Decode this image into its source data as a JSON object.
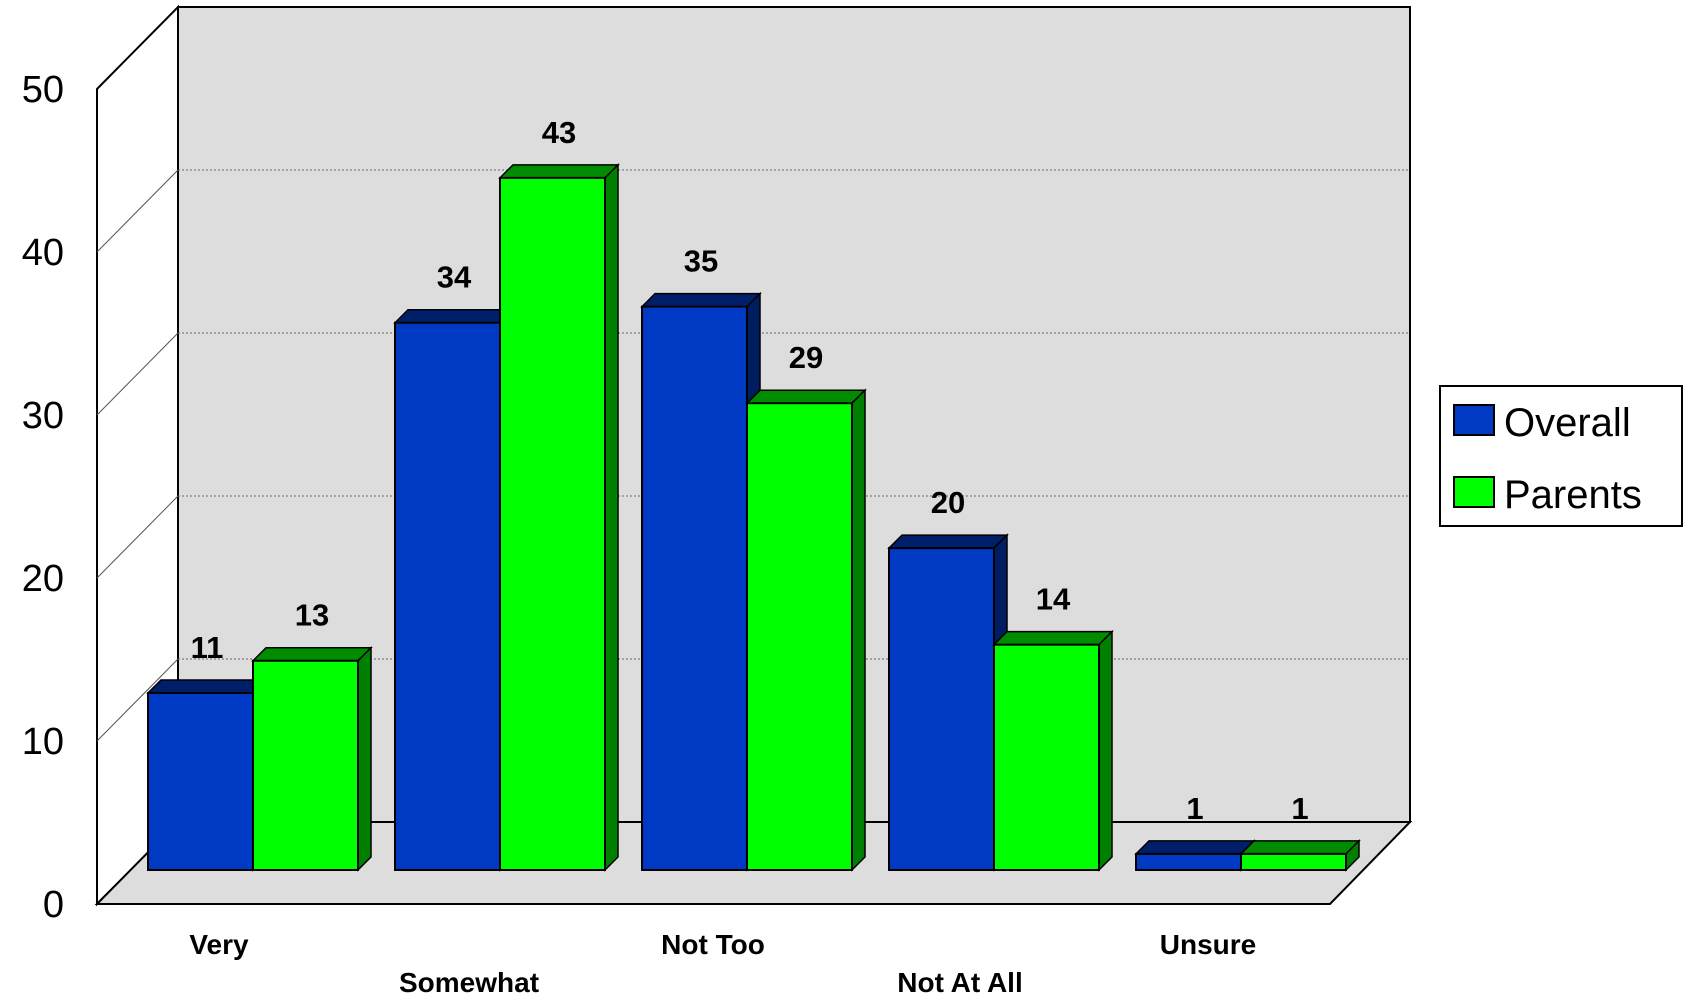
{
  "chart_data": {
    "type": "bar",
    "categories": [
      "Very",
      "Somewhat",
      "Not Too",
      "Not At All",
      "Unsure"
    ],
    "series": [
      {
        "name": "Overall",
        "values": [
          11,
          34,
          35,
          20,
          1
        ],
        "color": "#0039C3"
      },
      {
        "name": "Parents",
        "values": [
          13,
          43,
          29,
          14,
          1
        ],
        "color": "#00FF00"
      }
    ],
    "ylim": [
      0,
      50
    ],
    "yticks": [
      "0",
      "10",
      "20",
      "30",
      "40",
      "50"
    ],
    "legend_position": "right",
    "grid": true,
    "style": "3d"
  }
}
